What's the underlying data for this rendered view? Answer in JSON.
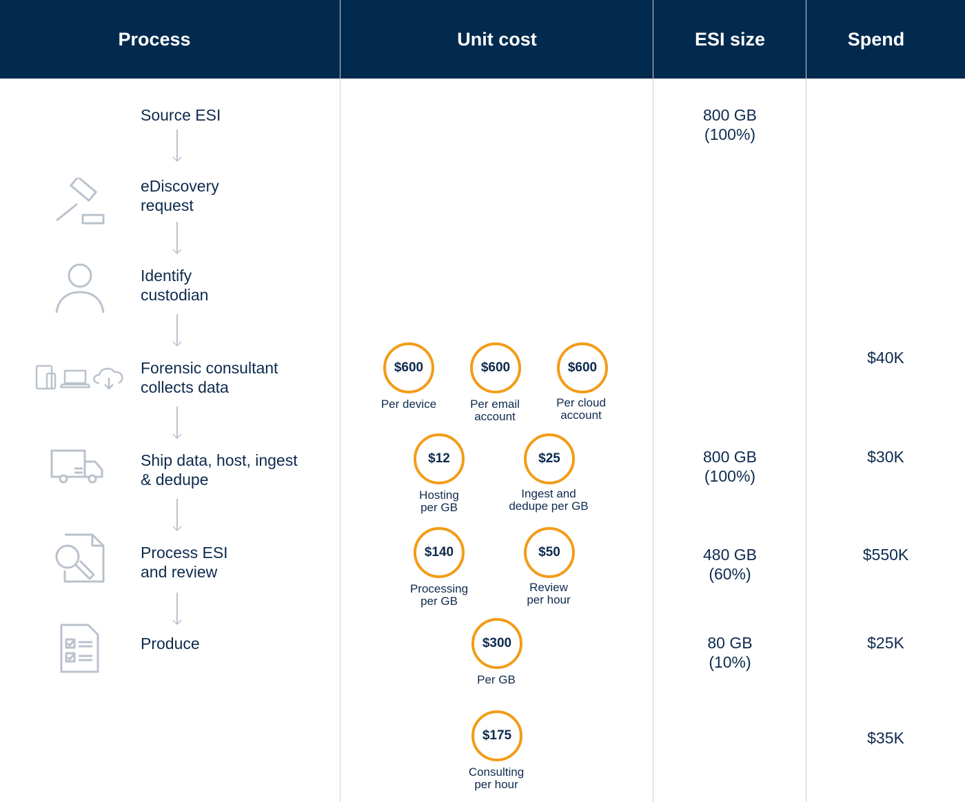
{
  "header": {
    "process": "Process",
    "unit_cost": "Unit cost",
    "esi_size": "ESI size",
    "spend": "Spend"
  },
  "steps": [
    {
      "label": "Source ESI",
      "icon": "none"
    },
    {
      "label": "eDiscovery\nrequest",
      "icon": "gavel-icon"
    },
    {
      "label": "Identify\ncustodian",
      "icon": "person-icon"
    },
    {
      "label": "Forensic consultant\ncollects data",
      "icon": "devices-icon"
    },
    {
      "label": "Ship data, host, ingest\n& dedupe",
      "icon": "truck-icon"
    },
    {
      "label": "Process ESI\nand review",
      "icon": "document-search-icon"
    },
    {
      "label": "Produce",
      "icon": "checklist-icon"
    }
  ],
  "costs": [
    {
      "value": "$600",
      "label": "Per device"
    },
    {
      "value": "$600",
      "label": "Per email\naccount"
    },
    {
      "value": "$600",
      "label": "Per cloud\naccount"
    },
    {
      "value": "$12",
      "label": "Hosting\nper GB"
    },
    {
      "value": "$25",
      "label": "Ingest and\ndedupe per GB"
    },
    {
      "value": "$140",
      "label": "Processing\nper GB"
    },
    {
      "value": "$50",
      "label": "Review\nper hour"
    },
    {
      "value": "$300",
      "label": "Per GB"
    },
    {
      "value": "$175",
      "label": "Consulting\nper hour"
    }
  ],
  "esi": [
    {
      "value": "800 GB\n(100%)"
    },
    {
      "value": "800 GB\n(100%)"
    },
    {
      "value": "480 GB\n(60%)"
    },
    {
      "value": "80 GB\n(10%)"
    }
  ],
  "spend": [
    {
      "value": "$40K"
    },
    {
      "value": "$30K"
    },
    {
      "value": "$550K"
    },
    {
      "value": "$25K"
    },
    {
      "value": "$35K"
    }
  ],
  "colors": {
    "header_bg": "#012a4e",
    "accent": "#f39c18",
    "text": "#0d2a4d",
    "icon_gray": "#b9c2cc"
  }
}
